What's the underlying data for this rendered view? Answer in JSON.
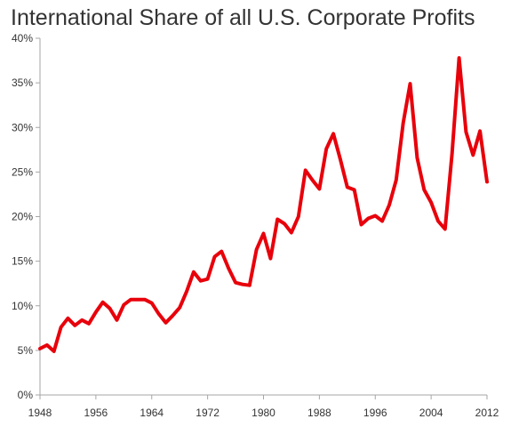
{
  "chart_data": {
    "type": "line",
    "title": "International Share of all U.S. Corporate Profits",
    "xlabel": "",
    "ylabel": "",
    "xlim": [
      1948,
      2012
    ],
    "ylim": [
      0,
      40
    ],
    "x_ticks": [
      1948,
      1956,
      1964,
      1972,
      1980,
      1988,
      1996,
      2004,
      2012
    ],
    "x_tick_labels": [
      "1948",
      "1956",
      "1964",
      "1972",
      "1980",
      "1988",
      "1996",
      "2004",
      "2012"
    ],
    "y_ticks": [
      0,
      5,
      10,
      15,
      20,
      25,
      30,
      35,
      40
    ],
    "y_tick_labels": [
      "0%",
      "5%",
      "10%",
      "15%",
      "20%",
      "25%",
      "30%",
      "35%",
      "40%"
    ],
    "grid": false,
    "legend": "none",
    "line_color": "#e8000b",
    "series": [
      {
        "x": [
          1948,
          1949,
          1950,
          1951,
          1952,
          1953,
          1954,
          1955,
          1956,
          1957,
          1958,
          1959,
          1960,
          1961,
          1962,
          1963,
          1964,
          1965,
          1966,
          1967,
          1968,
          1969,
          1970,
          1971,
          1972,
          1973,
          1974,
          1975,
          1976,
          1977,
          1978,
          1979,
          1980,
          1981,
          1982,
          1983,
          1984,
          1985,
          1986,
          1987,
          1988,
          1989,
          1990,
          1991,
          1992,
          1993,
          1994,
          1995,
          1996,
          1997,
          1998,
          1999,
          2000,
          2001,
          2002,
          2003,
          2004,
          2005,
          2006,
          2007,
          2008,
          2009,
          2010,
          2011,
          2012
        ],
        "values": [
          5.2,
          5.6,
          4.9,
          7.6,
          8.6,
          7.8,
          8.4,
          8.0,
          9.3,
          10.4,
          9.7,
          8.4,
          10.1,
          10.7,
          10.7,
          10.7,
          10.3,
          9.1,
          8.1,
          8.9,
          9.8,
          11.6,
          13.8,
          12.8,
          13.0,
          15.5,
          16.1,
          14.2,
          12.6,
          12.4,
          12.3,
          16.3,
          18.1,
          15.3,
          19.7,
          19.2,
          18.2,
          20.0,
          25.2,
          24.1,
          23.1,
          27.6,
          29.3,
          26.4,
          23.3,
          23.0,
          19.1,
          19.8,
          20.1,
          19.5,
          21.3,
          24.1,
          30.5,
          34.9,
          26.6,
          23.0,
          21.6,
          19.5,
          18.6,
          27.1,
          37.8,
          29.5,
          26.9,
          29.6,
          23.9
        ]
      }
    ]
  }
}
